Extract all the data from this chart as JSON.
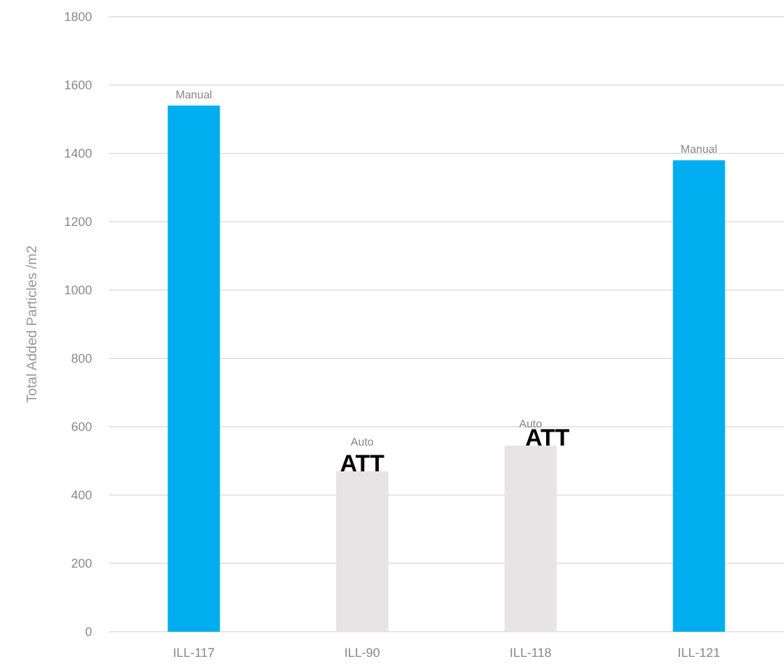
{
  "chart_data": {
    "type": "bar",
    "ylabel": "Total Added Particles /m2",
    "categories": [
      "ILL-117",
      "ILL-90",
      "ILL-118",
      "ILL-121"
    ],
    "values": [
      1540,
      470,
      545,
      1380
    ],
    "colors": [
      "#00aeef",
      "#e6e4e4",
      "#e6e4e4",
      "#00aeef"
    ],
    "ylim": [
      0,
      1800
    ],
    "yticks": [
      0,
      200,
      400,
      600,
      800,
      1000,
      1200,
      1400,
      1600,
      1800
    ],
    "grid": "y",
    "annotations": [
      {
        "text": "Manual",
        "x": "ILL-117",
        "y": 1540
      },
      {
        "text": "Auto",
        "x": "ILL-90",
        "y": 470
      },
      {
        "text": "ATT",
        "x": "ILL-90",
        "y": 470
      },
      {
        "text": "Auto",
        "x": "ILL-118",
        "y": 545
      },
      {
        "text": "ATT",
        "x": "ILL-118",
        "y": 545
      },
      {
        "text": "Manual",
        "x": "ILL-121",
        "y": 1380
      }
    ]
  }
}
